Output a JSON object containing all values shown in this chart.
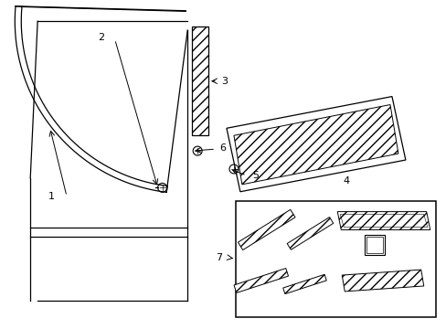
{
  "bg_color": "#ffffff",
  "line_color": "#000000",
  "fig_width": 4.89,
  "fig_height": 3.6,
  "dpi": 100,
  "label_fontsize": 8
}
